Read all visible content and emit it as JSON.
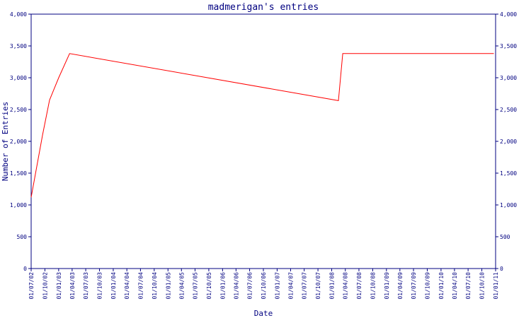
{
  "chart_data": {
    "type": "line",
    "title": "madmerigan's entries",
    "xlabel": "Date",
    "ylabel": "Number of Entries",
    "ylim": [
      0,
      4000
    ],
    "yticks": [
      "0",
      "500",
      "1,000",
      "1,500",
      "2,000",
      "2,500",
      "3,000",
      "3,500",
      "4,000"
    ],
    "xticks": [
      "01/07/02",
      "01/10/02",
      "01/01/03",
      "01/04/03",
      "01/07/03",
      "01/10/03",
      "01/01/04",
      "01/04/04",
      "01/07/04",
      "01/10/04",
      "01/01/05",
      "01/04/05",
      "01/07/05",
      "01/10/05",
      "01/01/06",
      "01/04/06",
      "01/07/06",
      "01/10/06",
      "01/01/07",
      "01/04/07",
      "01/07/07",
      "01/10/07",
      "01/01/08",
      "01/04/08",
      "01/07/08",
      "01/10/08",
      "01/01/09",
      "01/04/09",
      "01/07/09",
      "01/10/09",
      "01/01/10",
      "01/04/10",
      "01/07/10",
      "01/10/10",
      "01/01/11"
    ],
    "grid": false,
    "line_color": "#ff0000",
    "axis_color": "#000080",
    "series": [
      {
        "x": [
          "2002-07-01",
          "2002-09-15",
          "2002-11-01",
          "2003-01-01",
          "2003-03-15",
          "2008-02-15",
          "2008-03-15",
          "2010-12-20"
        ],
        "values": [
          1120,
          2100,
          2650,
          3000,
          3380,
          2640,
          3380,
          3380
        ]
      }
    ]
  }
}
